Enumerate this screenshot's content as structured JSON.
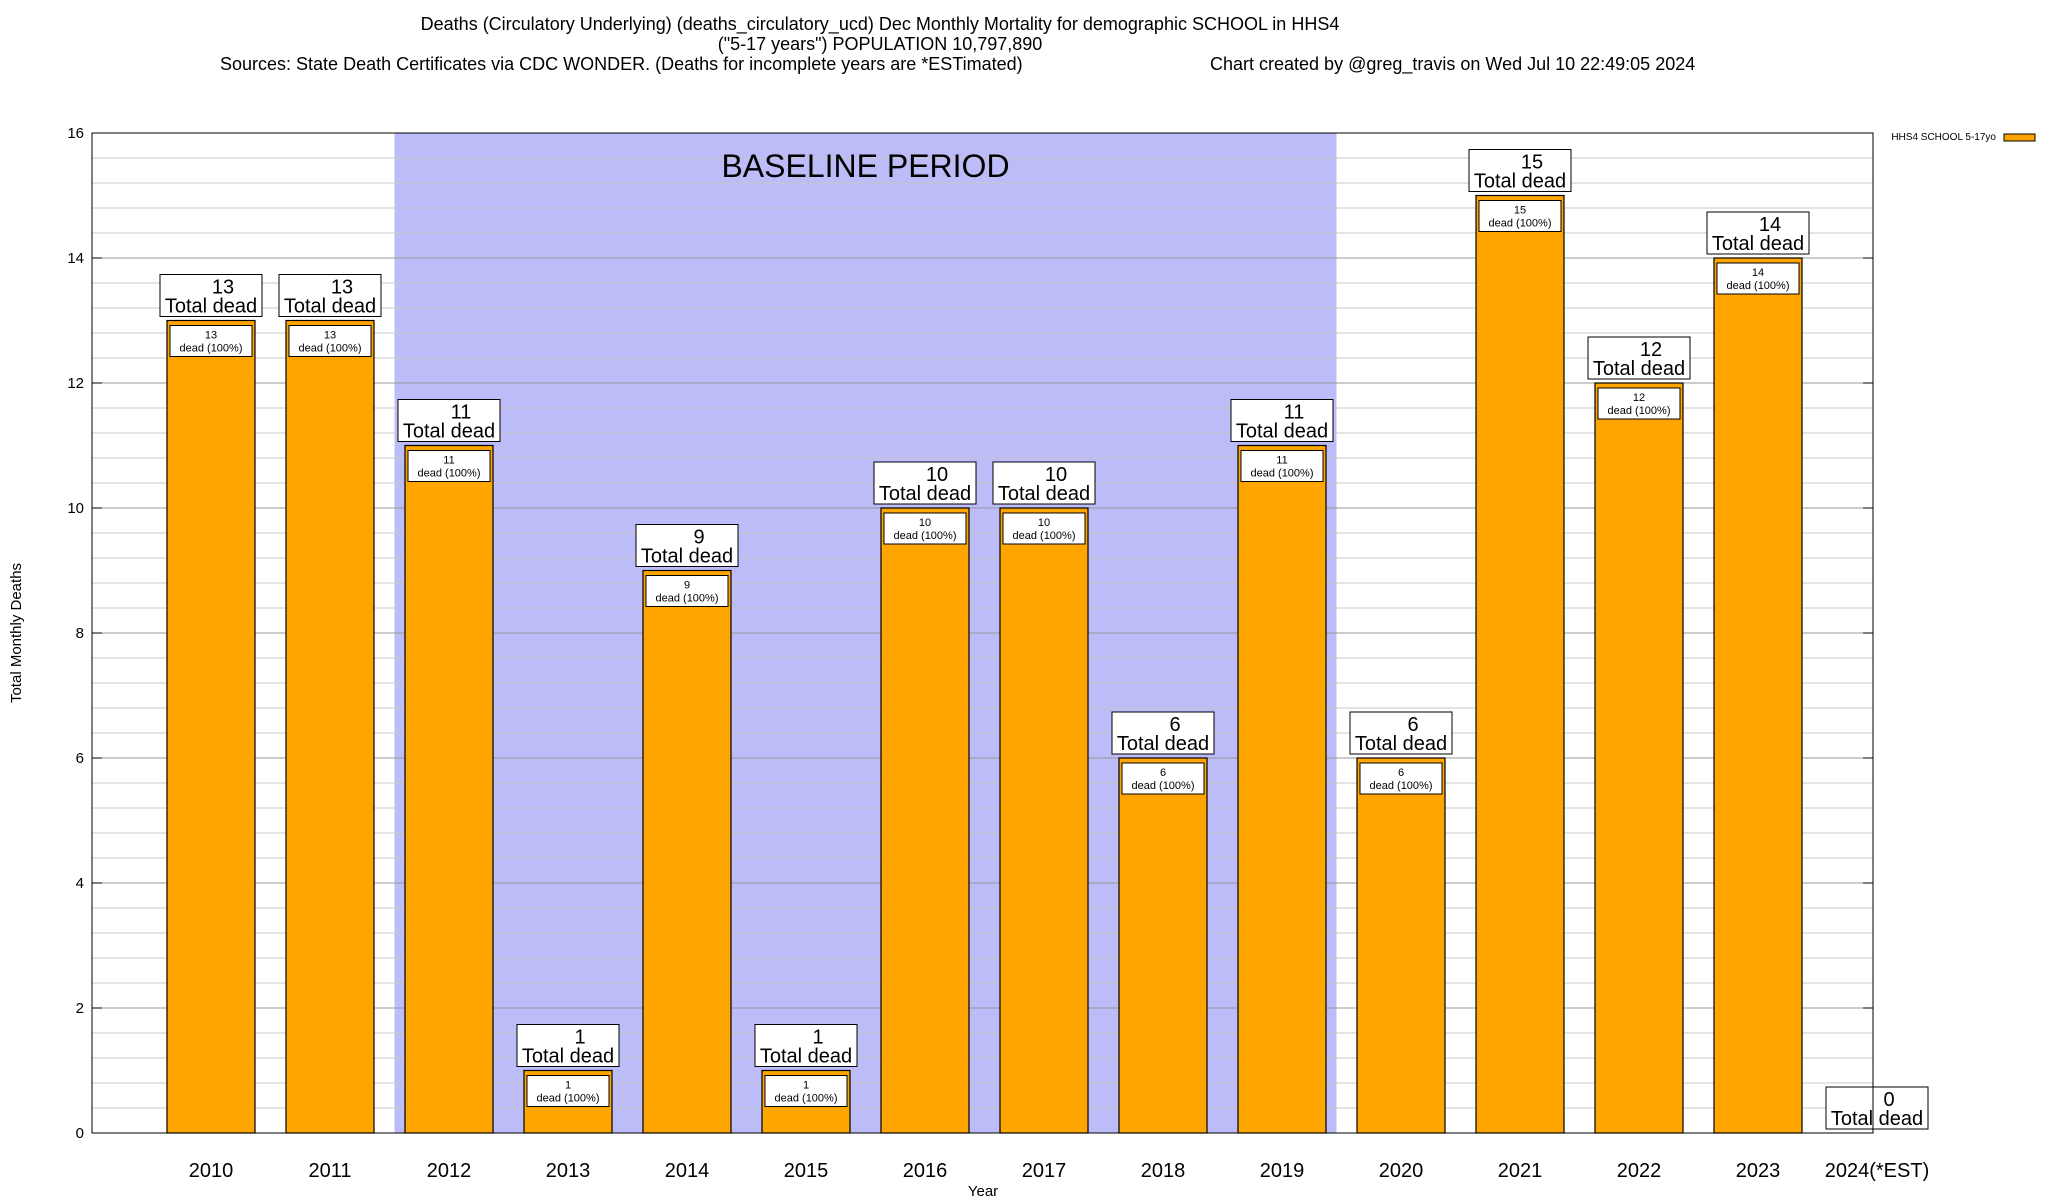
{
  "header": {
    "line1": "Deaths (Circulatory Underlying) (deaths_circulatory_ucd) Dec Monthly Mortality for demographic SCHOOL in HHS4",
    "line2": "(\"5-17 years\") POPULATION 10,797,890",
    "sources": "Sources: State Death Certificates via CDC WONDER. (Deaths for incomplete years are *ESTimated)",
    "credit": "Chart created by @greg_travis on Wed Jul 10 22:49:05 2024"
  },
  "chart_data": {
    "type": "bar",
    "title": "Deaths (Circulatory Underlying) (deaths_circulatory_ucd) Dec Monthly Mortality for demographic SCHOOL in HHS4",
    "xlabel": "Year",
    "ylabel": "Total Monthly Deaths",
    "ylim": [
      0,
      16
    ],
    "y_ticks": [
      0,
      2,
      4,
      6,
      8,
      10,
      12,
      14,
      16
    ],
    "categories": [
      "2010",
      "2011",
      "2012",
      "2013",
      "2014",
      "2015",
      "2016",
      "2017",
      "2018",
      "2019",
      "2020",
      "2021",
      "2022",
      "2023",
      "2024(*EST)"
    ],
    "series": [
      {
        "name": "HHS4 SCHOOL 5-17yo",
        "color": "#ffa500",
        "values": [
          13,
          13,
          11,
          1,
          9,
          1,
          10,
          10,
          6,
          11,
          6,
          15,
          12,
          14,
          0
        ]
      }
    ],
    "total_label_suffix": "Total dead",
    "inner_label_suffix": "dead (100%)",
    "baseline": {
      "label": "BASELINE PERIOD",
      "start": "2012",
      "end": "2019",
      "color": "#bcbcf8"
    },
    "legend": {
      "position": "top-right",
      "label": "HHS4 SCHOOL 5-17yo"
    },
    "grid": true
  }
}
